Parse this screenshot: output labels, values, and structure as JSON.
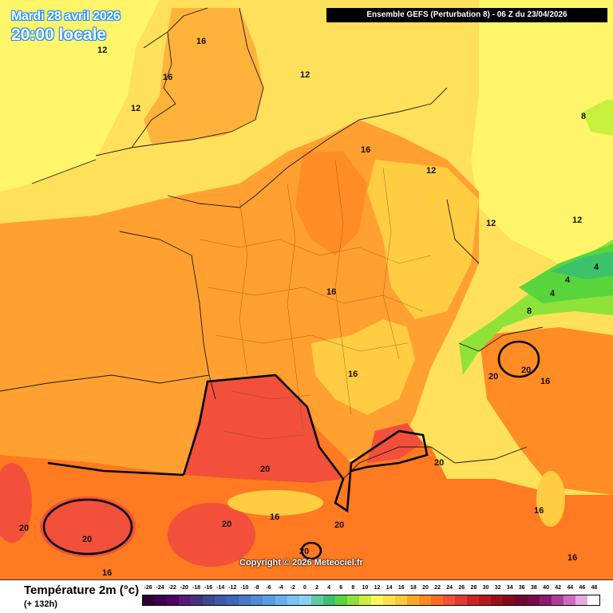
{
  "header": {
    "date": "Mardi 28 avril 2026",
    "time": "20:00 locale",
    "run": "Ensemble GEFS  (Perturbation 8)  -  06 Z du 23/04/2026"
  },
  "copyright": "Copyright © 2026 Meteociel.fr",
  "footer": {
    "variable": "Température 2m (°c)",
    "lead": "(+ 132h)"
  },
  "scale": {
    "ticks": [
      "-26",
      "-24",
      "-22",
      "-20",
      "-18",
      "-16",
      "-14",
      "-12",
      "-10",
      "-8",
      "-6",
      "-4",
      "-2",
      "0",
      "2",
      "4",
      "6",
      "8",
      "10",
      "12",
      "14",
      "16",
      "18",
      "20",
      "22",
      "24",
      "26",
      "28",
      "30",
      "32",
      "34",
      "36",
      "38",
      "40",
      "42",
      "44",
      "46",
      "48"
    ],
    "colors": [
      "#2a0036",
      "#3c0050",
      "#4f0066",
      "#5a1a7a",
      "#46317e",
      "#3a4a8c",
      "#3f5aa5",
      "#3e66b8",
      "#4878c8",
      "#4f8ad8",
      "#5a9de6",
      "#67b0f0",
      "#78c4f5",
      "#8ad2f2",
      "#5ec8a8",
      "#3cc26a",
      "#58d43c",
      "#8fe23a",
      "#c8f03c",
      "#fff45a",
      "#ffe04a",
      "#ffc83a",
      "#ffa628",
      "#ff8a1e",
      "#ff6a24",
      "#f2503a",
      "#e23a30",
      "#cc2426",
      "#b51a20",
      "#9c0f1a",
      "#860a1c",
      "#6f0a2c",
      "#7a0a4e",
      "#8c1a6e",
      "#b03c98",
      "#d06ac0",
      "#e8a8e0",
      "#ffffff"
    ]
  },
  "map_labels": {
    "t_16_uk": "16",
    "t_12_wales": "12",
    "t_16_england": "16",
    "t_12_nw": "12",
    "t_12_bel": "12",
    "t_16_bel": "16",
    "t_12_ger": "12",
    "t_12_alsace": "12",
    "t_12_ger_e": "12",
    "t_8_ne": "8",
    "t_4_alps_a": "4",
    "t_4_alps_b": "4",
    "t_4_alps_c": "4",
    "t_8_alps": "8",
    "t_16_center": "16",
    "t_16_massif": "16",
    "t_20_ligurian_a": "20",
    "t_20_ligurian_b": "20",
    "t_16_ligurian": "16",
    "t_20_pyr": "20",
    "t_20_provence": "20",
    "t_16_corsica_a": "16",
    "t_16_corsica_b": "16",
    "t_20_spain_w": "20",
    "t_20_spain_c": "20",
    "t_20_spain_e": "20",
    "t_16_ebro": "16",
    "t_20_cat": "20",
    "t_20_balear": "20",
    "t_16_spain_s": "16"
  }
}
